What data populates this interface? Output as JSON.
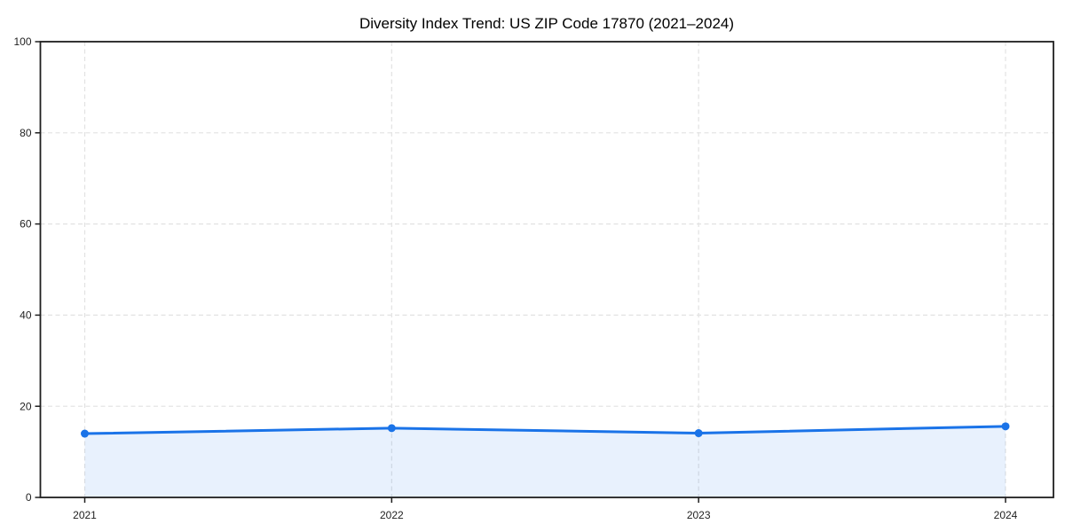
{
  "chart_data": {
    "type": "area",
    "title": "Diversity Index Trend: US ZIP Code 17870 (2021–2024)",
    "categories": [
      "2021",
      "2022",
      "2023",
      "2024"
    ],
    "series": [
      {
        "name": "Diversity Index",
        "values": [
          14.0,
          15.2,
          14.1,
          15.6
        ]
      }
    ],
    "xlabel": "",
    "ylabel": "",
    "ylim": [
      0,
      100
    ],
    "yticks": [
      0,
      20,
      40,
      60,
      80,
      100
    ],
    "grid": true,
    "grid_style": "dashed",
    "legend": "none",
    "colors": {
      "line": "#1a73e8",
      "marker": "#1a73e8",
      "fill": "rgba(26,115,232,0.10)",
      "grid": "#e2e2e2",
      "spine": "#1f1f1f",
      "tick": "#1f1f1f",
      "tick_label": "#1f1f1f",
      "title": "#000000",
      "background": "#ffffff"
    }
  }
}
